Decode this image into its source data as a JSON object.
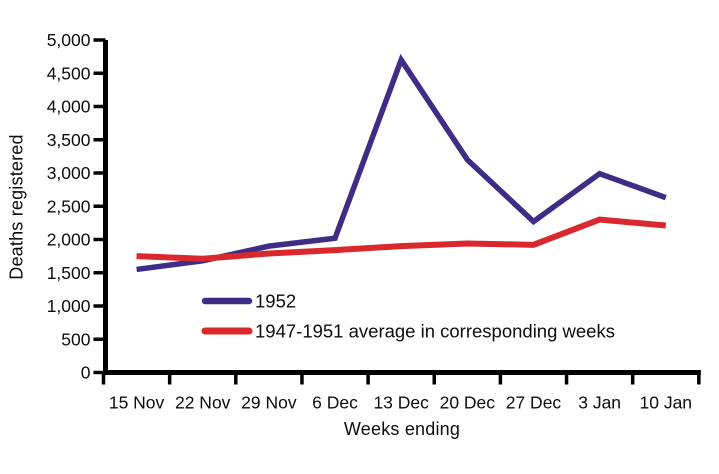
{
  "chart_data": {
    "type": "line",
    "title": "",
    "xlabel": "Weeks ending",
    "ylabel": "Deaths registered",
    "categories": [
      "15 Nov",
      "22 Nov",
      "29 Nov",
      "6 Dec",
      "13 Dec",
      "20 Dec",
      "27 Dec",
      "3 Jan",
      "10 Jan"
    ],
    "series": [
      {
        "name": "1952",
        "color": "#3f2d85",
        "line_width": 5.5,
        "values": [
          1550,
          1680,
          1900,
          2020,
          4700,
          3200,
          2270,
          2990,
          2630
        ]
      },
      {
        "name": "1947-1951 average in corresponding weeks",
        "color": "#d9282e",
        "line_width": 6,
        "values": [
          1750,
          1710,
          1790,
          1840,
          1900,
          1940,
          1920,
          2300,
          2210
        ]
      }
    ],
    "ylim": [
      0,
      5000
    ],
    "ytick_step": 500,
    "ytick_labels": [
      "0",
      "500",
      "1,000",
      "1,500",
      "2,000",
      "2,500",
      "3,000",
      "3,500",
      "4,000",
      "4,500",
      "5,000"
    ],
    "grid": false,
    "legend_position": "inside-lower-left",
    "axis_color": "#000000",
    "text_color": "#0d0d0d"
  }
}
